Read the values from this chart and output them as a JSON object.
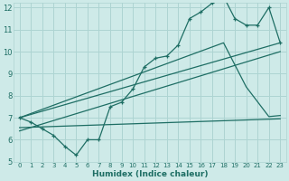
{
  "title": "",
  "xlabel": "Humidex (Indice chaleur)",
  "ylabel": "",
  "bg_color": "#ceeae8",
  "grid_color": "#add4d2",
  "line_color": "#1e6e64",
  "xlim": [
    -0.5,
    23.5
  ],
  "ylim": [
    5,
    12.2
  ],
  "xticks": [
    0,
    1,
    2,
    3,
    4,
    5,
    6,
    7,
    8,
    9,
    10,
    11,
    12,
    13,
    14,
    15,
    16,
    17,
    18,
    19,
    20,
    21,
    22,
    23
  ],
  "yticks": [
    5,
    6,
    7,
    8,
    9,
    10,
    11,
    12
  ],
  "line1_x": [
    0,
    1,
    2,
    3,
    4,
    5,
    6,
    7,
    8,
    9,
    10,
    11,
    12,
    13,
    14,
    15,
    16,
    17,
    18,
    19,
    20,
    21,
    22,
    23
  ],
  "line1_y": [
    7.0,
    6.8,
    6.5,
    6.2,
    5.7,
    5.3,
    6.0,
    6.0,
    7.5,
    7.7,
    8.3,
    9.3,
    9.7,
    9.8,
    10.3,
    11.5,
    11.8,
    12.2,
    12.5,
    11.5,
    11.2,
    11.2,
    12.0,
    10.4
  ],
  "line2_x": [
    0,
    18,
    20,
    22,
    23
  ],
  "line2_y": [
    7.0,
    10.4,
    8.4,
    7.05,
    7.1
  ],
  "line3_x": [
    0,
    23
  ],
  "line3_y": [
    7.0,
    10.4
  ],
  "line4_x": [
    0,
    23
  ],
  "line4_y": [
    6.4,
    10.0
  ],
  "line5_x": [
    0,
    23
  ],
  "line5_y": [
    6.55,
    6.95
  ]
}
